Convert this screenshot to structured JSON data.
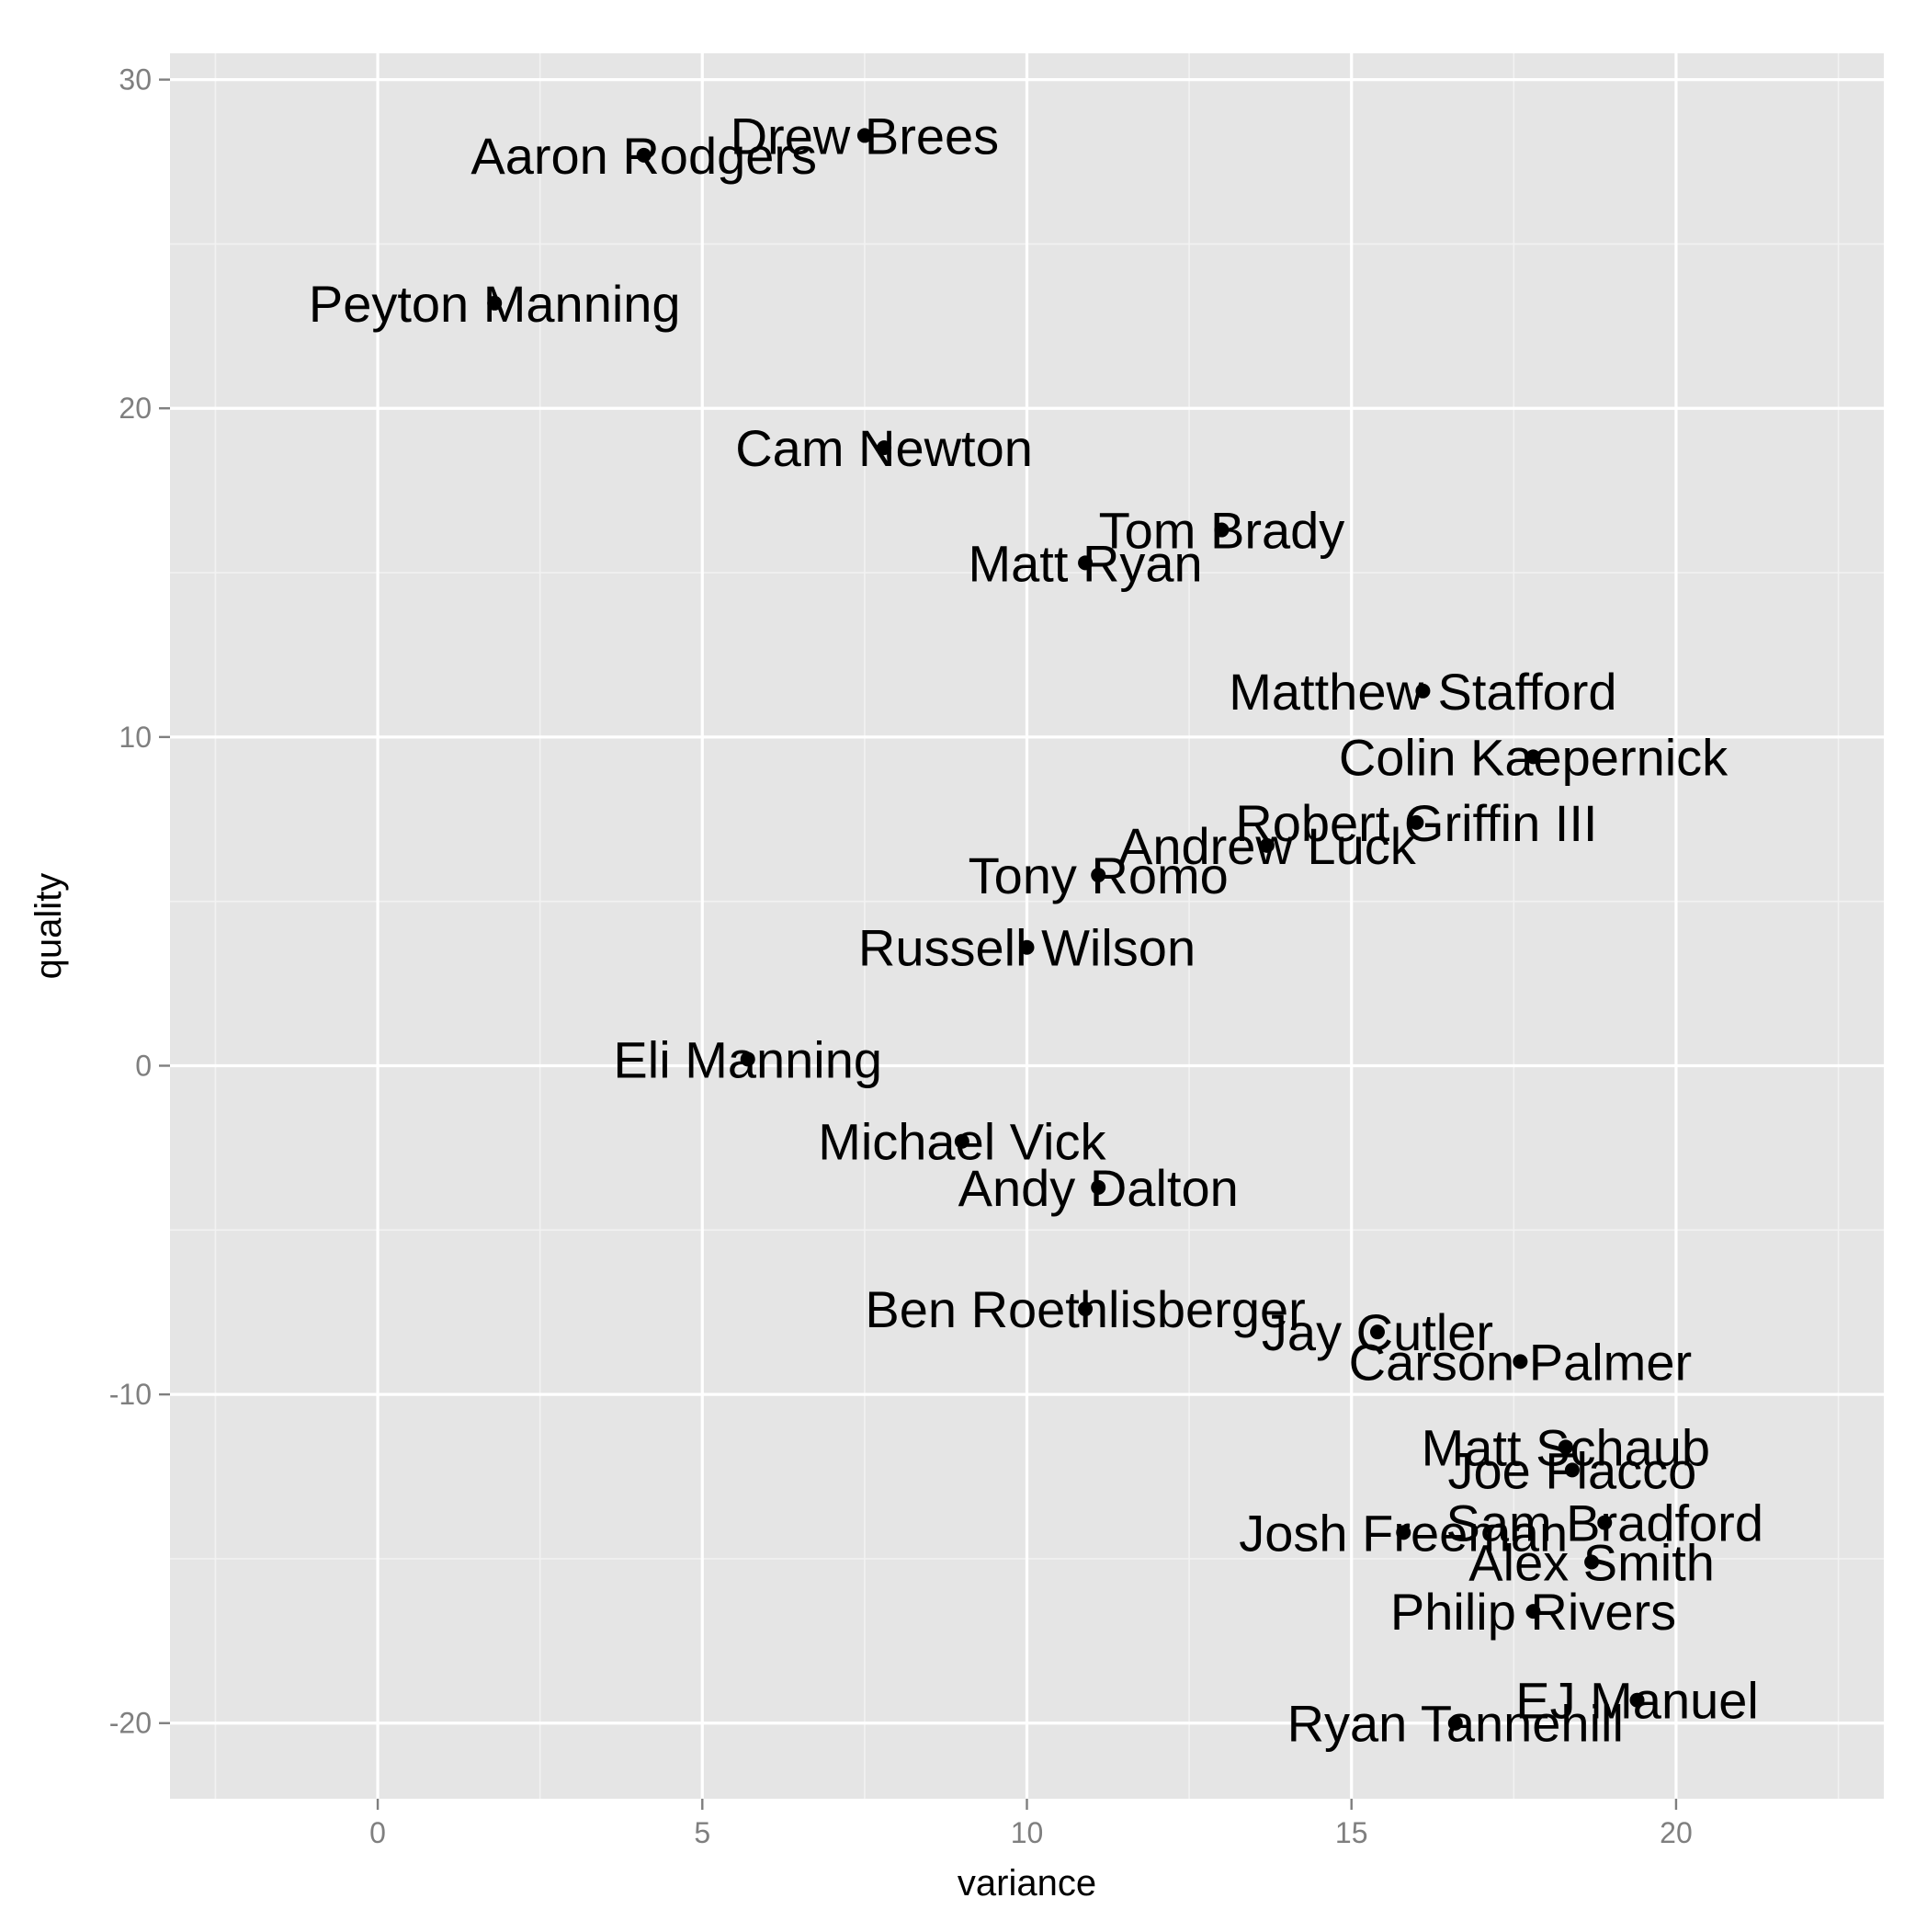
{
  "chart_data": {
    "type": "scatter",
    "title": "",
    "xlabel": "variance",
    "ylabel": "quality",
    "xlim": [
      -3.2,
      23.2
    ],
    "ylim": [
      -22.3,
      30.8
    ],
    "x_ticks": [
      0,
      5,
      10,
      15,
      20
    ],
    "y_ticks": [
      -20,
      -10,
      0,
      10,
      20,
      30
    ],
    "x_tick_labels": [
      "0",
      "5",
      "10",
      "15",
      "20"
    ],
    "y_tick_labels": [
      "-20",
      "-10",
      "0",
      "10",
      "20",
      "30"
    ],
    "grid": true,
    "legend": "none",
    "colors": {
      "panel": "#e5e5e5",
      "grid_major": "#ffffff",
      "grid_minor": "#f2f2f2",
      "point": "#000000",
      "tick_text": "#7f7f7f"
    },
    "points": [
      {
        "label": "Drew Brees",
        "x": 7.5,
        "y": 28.3
      },
      {
        "label": "Aaron Rodgers",
        "x": 4.1,
        "y": 27.7
      },
      {
        "label": "Peyton Manning",
        "x": 1.8,
        "y": 23.2
      },
      {
        "label": "Cam Newton",
        "x": 7.8,
        "y": 18.8
      },
      {
        "label": "Tom Brady",
        "x": 13.0,
        "y": 16.3
      },
      {
        "label": "Matt Ryan",
        "x": 10.9,
        "y": 15.3
      },
      {
        "label": "Matthew Stafford",
        "x": 16.1,
        "y": 11.4
      },
      {
        "label": "Colin Kaepernick",
        "x": 17.8,
        "y": 9.4
      },
      {
        "label": "Robert Griffin III",
        "x": 16.0,
        "y": 7.4
      },
      {
        "label": "Andrew Luck",
        "x": 13.7,
        "y": 6.7
      },
      {
        "label": "Tony Romo",
        "x": 11.1,
        "y": 5.8
      },
      {
        "label": "Russell Wilson",
        "x": 10.0,
        "y": 3.6
      },
      {
        "label": "Eli Manning",
        "x": 5.7,
        "y": 0.2
      },
      {
        "label": "Michael Vick",
        "x": 9.0,
        "y": -2.3
      },
      {
        "label": "Andy Dalton",
        "x": 11.1,
        "y": -3.7
      },
      {
        "label": "Ben Roethlisberger",
        "x": 10.9,
        "y": -7.4
      },
      {
        "label": "Jay Cutler",
        "x": 15.4,
        "y": -8.1
      },
      {
        "label": "Carson Palmer",
        "x": 17.6,
        "y": -9.0
      },
      {
        "label": "Matt Schaub",
        "x": 18.3,
        "y": -11.6
      },
      {
        "label": "Joe Flacco",
        "x": 18.4,
        "y": -12.3
      },
      {
        "label": "Sam Bradford",
        "x": 18.9,
        "y": -13.9
      },
      {
        "label": "Josh Freeman",
        "x": 15.8,
        "y": -14.2
      },
      {
        "label": "Alex Smith",
        "x": 18.7,
        "y": -15.1
      },
      {
        "label": "Philip Rivers",
        "x": 17.8,
        "y": -16.6
      },
      {
        "label": "EJ Manuel",
        "x": 19.4,
        "y": -19.3
      },
      {
        "label": "Ryan Tannehill",
        "x": 16.6,
        "y": -20.0
      }
    ]
  }
}
